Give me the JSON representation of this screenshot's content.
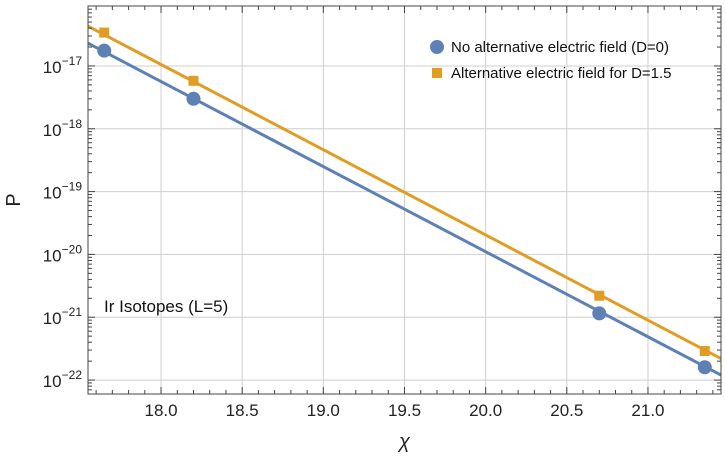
{
  "chart_data": {
    "type": "scatter",
    "title": "",
    "xlabel": "χ",
    "ylabel": "P",
    "xscale": "linear",
    "yscale": "log",
    "xlim": [
      17.55,
      21.45
    ],
    "ylim": [
      6e-23,
      9e-17
    ],
    "grid": true,
    "legend_position": "top-right",
    "x_ticks": [
      18.0,
      18.5,
      19.0,
      19.5,
      20.0,
      20.5,
      21.0
    ],
    "x_tick_labels": [
      "18.0",
      "18.5",
      "19.0",
      "19.5",
      "20.0",
      "20.5",
      "21.0"
    ],
    "y_ticks": [
      {
        "value": 1e-17,
        "base": "10",
        "exp": "−17"
      },
      {
        "value": 1e-18,
        "base": "10",
        "exp": "−18"
      },
      {
        "value": 1e-19,
        "base": "10",
        "exp": "−19"
      },
      {
        "value": 1e-20,
        "base": "10",
        "exp": "−20"
      },
      {
        "value": 1e-21,
        "base": "10",
        "exp": "−21"
      },
      {
        "value": 1e-22,
        "base": "10",
        "exp": "−22"
      }
    ],
    "annotation": "Ir Isotopes (L=5)",
    "series": [
      {
        "name": "No alternative electric field (D=0)",
        "marker": "circle",
        "color": "#5e81b5",
        "points": [
          {
            "x": 17.65,
            "y": 1.75e-17
          },
          {
            "x": 18.2,
            "y": 3e-18
          },
          {
            "x": 20.7,
            "y": 1.15e-21
          },
          {
            "x": 21.35,
            "y": 1.6e-22
          }
        ],
        "fit_line": [
          {
            "x": 17.55,
            "y": 2.3e-17
          },
          {
            "x": 21.45,
            "y": 1.2e-22
          }
        ]
      },
      {
        "name": "Alternative electric field for D=1.5",
        "marker": "square",
        "color": "#e19c24",
        "points": [
          {
            "x": 17.65,
            "y": 3.4e-17
          },
          {
            "x": 18.2,
            "y": 5.8e-18
          },
          {
            "x": 20.7,
            "y": 2.2e-21
          },
          {
            "x": 21.35,
            "y": 2.9e-22
          }
        ],
        "fit_line": [
          {
            "x": 17.55,
            "y": 4.3e-17
          },
          {
            "x": 21.45,
            "y": 2.2e-22
          }
        ]
      }
    ]
  }
}
